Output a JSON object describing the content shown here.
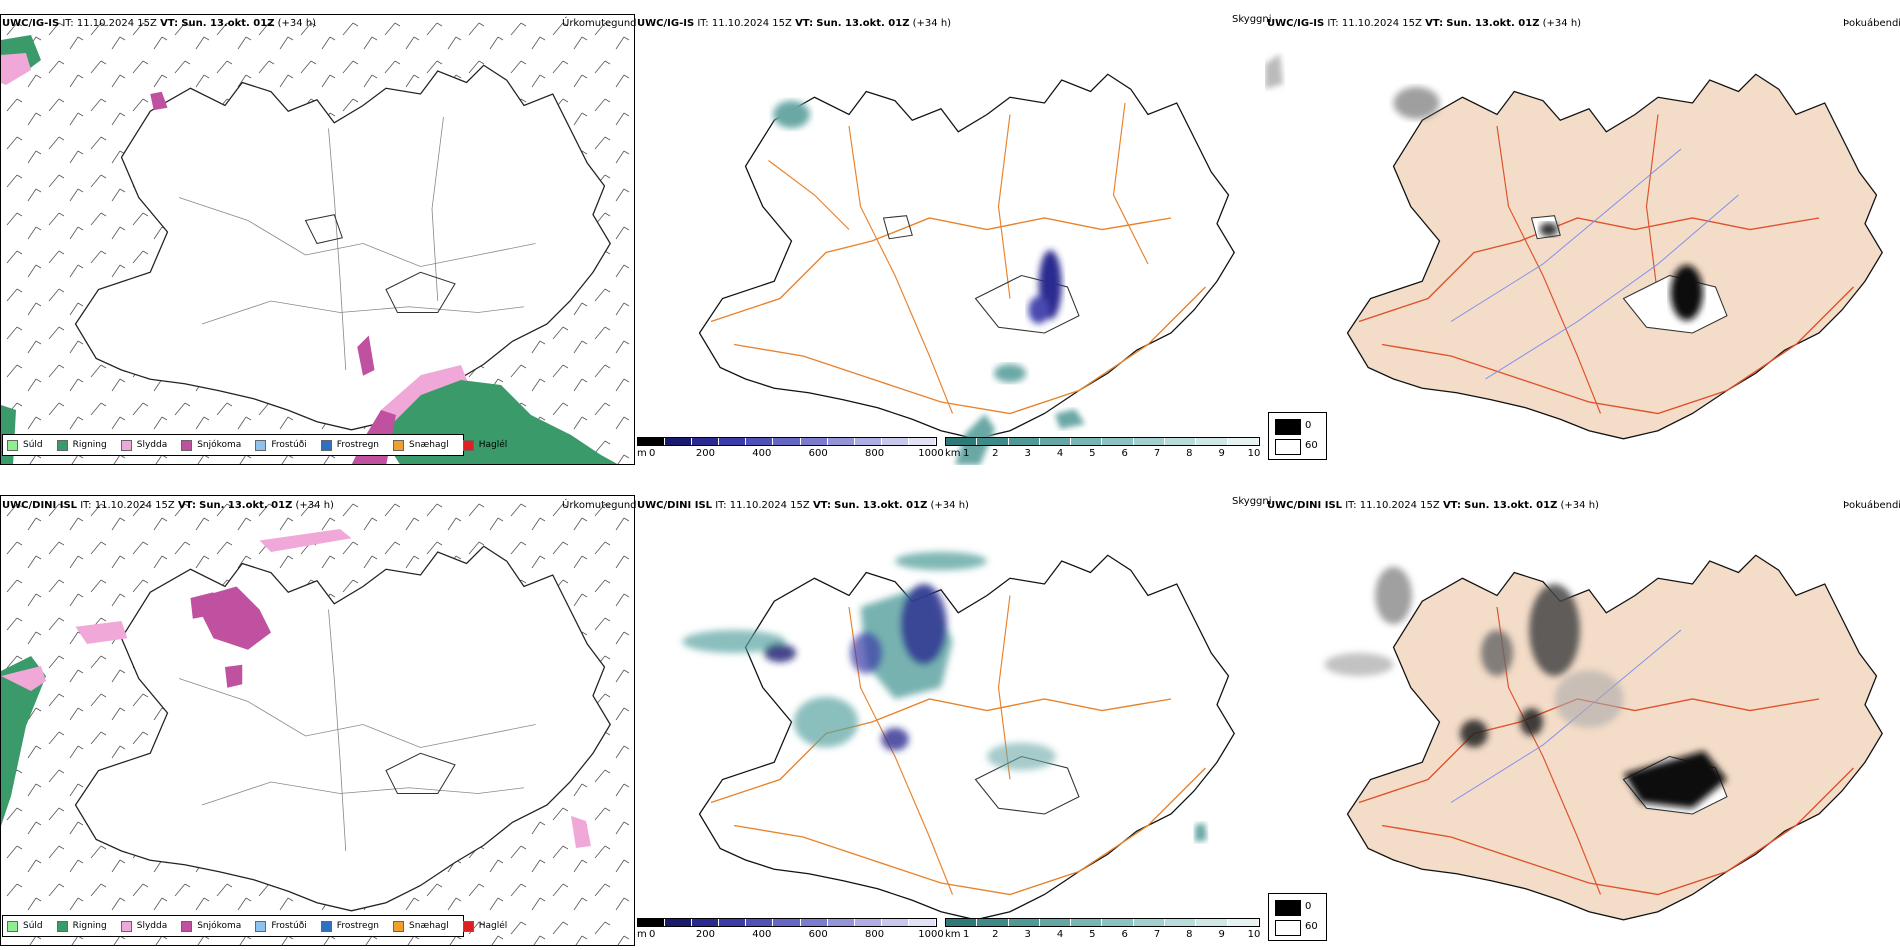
{
  "rows": [
    {
      "model": "UWC/IG-IS",
      "it_label": "IT:",
      "it_value": "11.10.2024 15Z",
      "vt_label": "VT:",
      "vt_value": "Sun. 13.okt. 01Z",
      "lead": "(+34 h)"
    },
    {
      "model": "UWC/DINI ISL",
      "it_label": "IT:",
      "it_value": "11.10.2024 15Z",
      "vt_label": "VT:",
      "vt_value": "Sun. 13.okt. 01Z",
      "lead": "(+34 h)"
    }
  ],
  "panels": {
    "precip_title": "Úrkomutegund",
    "vis_title": "Skyggni",
    "fog_title": "Þokuábendi"
  },
  "precip_legend": [
    {
      "label": "Súld",
      "color": "#90ee90"
    },
    {
      "label": "Rigning",
      "color": "#3a9a6a"
    },
    {
      "label": "Slydda",
      "color": "#f0a8d8"
    },
    {
      "label": "Snjókoma",
      "color": "#c050a0"
    },
    {
      "label": "Frostúði",
      "color": "#90c0f0"
    },
    {
      "label": "Frostregn",
      "color": "#3070c0"
    },
    {
      "label": "Snæhagl",
      "color": "#f0a030"
    },
    {
      "label": "Haglél",
      "color": "#e02020"
    }
  ],
  "ceiling_bar": {
    "unit": "m",
    "ticks": [
      "0",
      "200",
      "400",
      "600",
      "800",
      "1000"
    ],
    "colors": [
      "#000000",
      "#1a1a6e",
      "#2a2a90",
      "#3c3ca8",
      "#5050b8",
      "#6666c4",
      "#7c7cce",
      "#9494d8",
      "#aeaee2",
      "#c8c8ec",
      "#e2e2f6"
    ]
  },
  "vis_bar": {
    "unit": "km",
    "ticks": [
      "1",
      "2",
      "3",
      "4",
      "5",
      "6",
      "7",
      "8",
      "9",
      "10"
    ],
    "colors": [
      "#2e7a78",
      "#3e8a88",
      "#519997",
      "#64a8a6",
      "#78b6b4",
      "#8cc3c1",
      "#a2d0ce",
      "#b8dcda",
      "#cfe8e6",
      "#e6f3f2"
    ]
  },
  "fog_legend": {
    "high_value": "0",
    "low_value": "60"
  }
}
